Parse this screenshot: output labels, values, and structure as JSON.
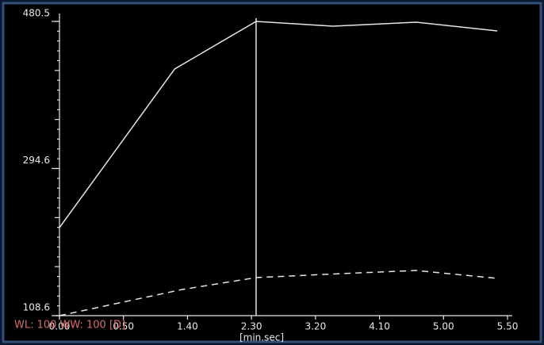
{
  "chart_data": {
    "type": "line",
    "x_label": "[min.sec]",
    "annotation": "WL: 100 WW: 100 [D]",
    "xlim": [
      0,
      350
    ],
    "xticks": [
      {
        "value": 0,
        "label": "0.00"
      },
      {
        "value": 50,
        "label": "0.50"
      },
      {
        "value": 100,
        "label": "1.40"
      },
      {
        "value": 150,
        "label": "2.30"
      },
      {
        "value": 200,
        "label": "3.20"
      },
      {
        "value": 250,
        "label": "4.10"
      },
      {
        "value": 300,
        "label": "5.00"
      },
      {
        "value": 350,
        "label": "5.50"
      }
    ],
    "ylim": [
      108.6,
      480.5
    ],
    "yticks": [
      108.6,
      294.6,
      480.5
    ],
    "cursor_x": 153.6,
    "series": [
      {
        "color": "#e6e6e6",
        "dash": false,
        "x": [
          0,
          90,
          153.6,
          213.7,
          278.8,
          342
        ],
        "values": [
          219.9,
          420.4,
          480.5,
          474.5,
          479.5,
          468.5
        ]
      },
      {
        "color": "#e6e6e6",
        "dash": true,
        "x": [
          0,
          96,
          153.6,
          220,
          278.8,
          342
        ],
        "values": [
          108.6,
          141.7,
          156.7,
          161.7,
          165.7,
          155.7
        ]
      }
    ]
  }
}
